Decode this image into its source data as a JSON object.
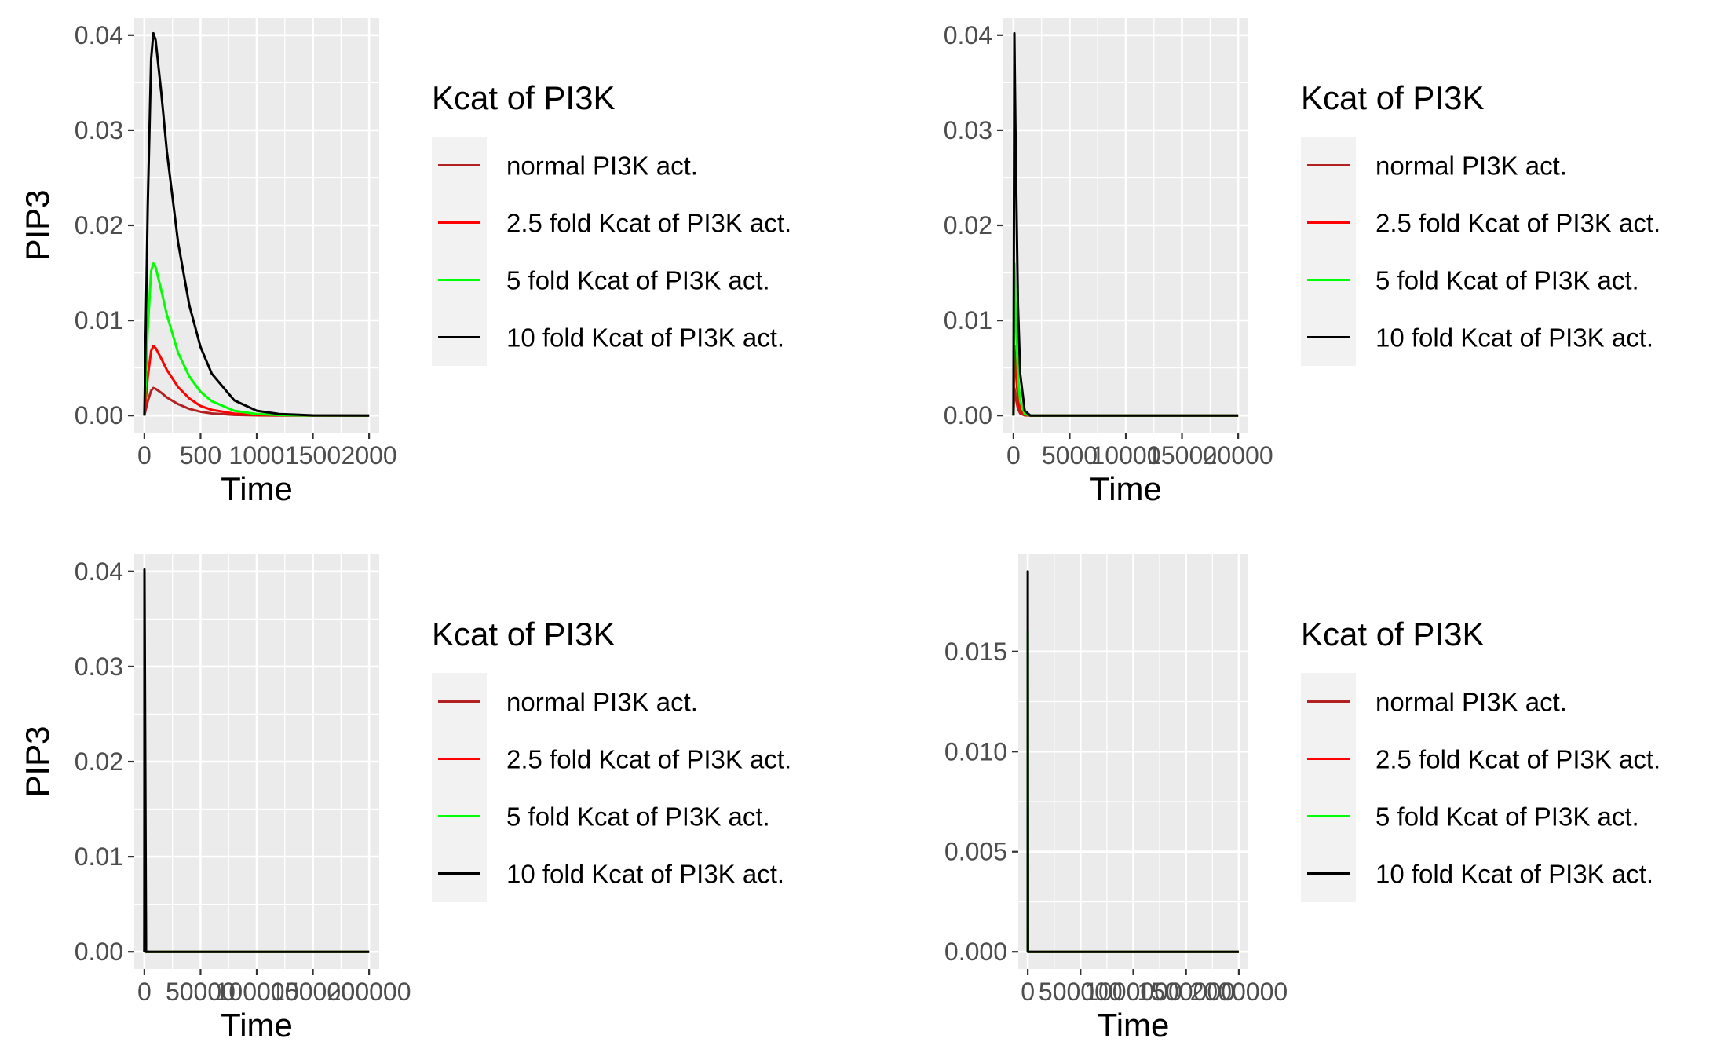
{
  "chart_data": [
    {
      "type": "line",
      "xlabel": "Time",
      "ylabel": "PIP3",
      "xlim": [
        0,
        2000
      ],
      "ylim": [
        0,
        0.04
      ],
      "x_ticks": [
        0,
        500,
        1000,
        1500,
        2000
      ],
      "x_tick_labels": [
        "0",
        "500",
        "1000",
        "1500",
        "2000"
      ],
      "y_ticks": [
        0,
        0.01,
        0.02,
        0.03,
        0.04
      ],
      "y_tick_labels": [
        "0.00",
        "0.01",
        "0.02",
        "0.03",
        "0.04"
      ],
      "grid": true,
      "legend_title": "Kcat of PI3K",
      "legend_position": "right",
      "series": [
        {
          "name": "normal PI3K act.",
          "color": "#b22222",
          "x": [
            0,
            30,
            60,
            80,
            100,
            150,
            200,
            300,
            400,
            500,
            600,
            800,
            1000,
            1200,
            1500,
            2000
          ],
          "y": [
            0,
            0.0015,
            0.0026,
            0.0029,
            0.0028,
            0.0024,
            0.0019,
            0.0012,
            0.0007,
            0.0004,
            0.00022,
            7e-05,
            2e-05,
            0,
            0,
            0
          ]
        },
        {
          "name": "2.5 fold Kcat of PI3K act.",
          "color": "#ff0000",
          "x": [
            0,
            30,
            60,
            80,
            100,
            150,
            200,
            300,
            400,
            500,
            600,
            800,
            1000,
            1200,
            1500,
            2000
          ],
          "y": [
            0,
            0.004,
            0.0068,
            0.0073,
            0.0071,
            0.006,
            0.0048,
            0.003,
            0.0018,
            0.001,
            0.0006,
            0.0002,
            6e-05,
            2e-05,
            0,
            0
          ]
        },
        {
          "name": "5 fold Kcat of PI3K act.",
          "color": "#00ff00",
          "x": [
            0,
            30,
            60,
            80,
            100,
            150,
            200,
            300,
            400,
            500,
            600,
            800,
            1000,
            1200,
            1500,
            2000
          ],
          "y": [
            0,
            0.009,
            0.0152,
            0.016,
            0.0156,
            0.0132,
            0.0106,
            0.0066,
            0.0041,
            0.0025,
            0.0015,
            0.0005,
            0.00016,
            5e-05,
            0,
            0
          ]
        },
        {
          "name": "10 fold Kcat of PI3K act.",
          "color": "#000000",
          "x": [
            0,
            30,
            60,
            80,
            100,
            150,
            200,
            300,
            400,
            500,
            600,
            800,
            1000,
            1200,
            1500,
            2000
          ],
          "y": [
            0,
            0.022,
            0.0375,
            0.0402,
            0.0395,
            0.034,
            0.0278,
            0.0182,
            0.0116,
            0.0072,
            0.0044,
            0.0016,
            0.0005,
            0.00016,
            2e-05,
            0
          ]
        }
      ]
    },
    {
      "type": "line",
      "xlabel": "Time",
      "ylabel": "PIP3",
      "xlim": [
        0,
        20000
      ],
      "ylim": [
        0,
        0.04
      ],
      "x_ticks": [
        0,
        5000,
        10000,
        15000,
        20000
      ],
      "x_tick_labels": [
        "0",
        "5000",
        "10000",
        "15000",
        "20000"
      ],
      "y_ticks": [
        0,
        0.01,
        0.02,
        0.03,
        0.04
      ],
      "y_tick_labels": [
        "0.00",
        "0.01",
        "0.02",
        "0.03",
        "0.04"
      ],
      "grid": true,
      "legend_title": "Kcat of PI3K",
      "legend_position": "right",
      "series": [
        {
          "name": "normal PI3K act.",
          "color": "#b22222",
          "x": [
            0,
            80,
            200,
            400,
            600,
            1000,
            1500,
            20000
          ],
          "y": [
            0,
            0.0029,
            0.0019,
            0.0007,
            0.00022,
            2e-05,
            0,
            0
          ]
        },
        {
          "name": "2.5 fold Kcat of PI3K act.",
          "color": "#ff0000",
          "x": [
            0,
            80,
            200,
            400,
            600,
            1000,
            1500,
            20000
          ],
          "y": [
            0,
            0.0073,
            0.0048,
            0.0018,
            0.0006,
            6e-05,
            0,
            0
          ]
        },
        {
          "name": "5 fold Kcat of PI3K act.",
          "color": "#00ff00",
          "x": [
            0,
            80,
            200,
            400,
            600,
            1000,
            1500,
            20000
          ],
          "y": [
            0,
            0.016,
            0.0106,
            0.0041,
            0.0015,
            0.00016,
            0,
            0
          ]
        },
        {
          "name": "10 fold Kcat of PI3K act.",
          "color": "#000000",
          "x": [
            0,
            80,
            200,
            400,
            600,
            1000,
            1500,
            20000
          ],
          "y": [
            0,
            0.0402,
            0.0278,
            0.0116,
            0.0044,
            0.0005,
            0,
            0
          ]
        }
      ]
    },
    {
      "type": "line",
      "xlabel": "Time",
      "ylabel": "PIP3",
      "xlim": [
        0,
        200000
      ],
      "ylim": [
        0,
        0.04
      ],
      "x_ticks": [
        0,
        50000,
        100000,
        150000,
        200000
      ],
      "x_tick_labels": [
        "0",
        "50000",
        "100000",
        "150000",
        "200000"
      ],
      "y_ticks": [
        0,
        0.01,
        0.02,
        0.03,
        0.04
      ],
      "y_tick_labels": [
        "0.00",
        "0.01",
        "0.02",
        "0.03",
        "0.04"
      ],
      "grid": true,
      "legend_title": "Kcat of PI3K",
      "legend_position": "right",
      "series": [
        {
          "name": "normal PI3K act.",
          "color": "#b22222",
          "x": [
            0,
            80,
            1500,
            200000
          ],
          "y": [
            0,
            0.0029,
            0,
            0
          ]
        },
        {
          "name": "2.5 fold Kcat of PI3K act.",
          "color": "#ff0000",
          "x": [
            0,
            80,
            1500,
            200000
          ],
          "y": [
            0,
            0.0073,
            0,
            0
          ]
        },
        {
          "name": "5 fold Kcat of PI3K act.",
          "color": "#00ff00",
          "x": [
            0,
            80,
            1500,
            200000
          ],
          "y": [
            0,
            0.016,
            0,
            0
          ]
        },
        {
          "name": "10 fold Kcat of PI3K act.",
          "color": "#000000",
          "x": [
            0,
            80,
            1500,
            200000
          ],
          "y": [
            0,
            0.0402,
            0,
            0
          ]
        }
      ]
    },
    {
      "type": "line",
      "xlabel": "Time",
      "ylabel": "PIP3",
      "xlim": [
        0,
        2000000
      ],
      "ylim": [
        0,
        0.019
      ],
      "x_ticks": [
        0,
        500000,
        1000000,
        1500000,
        2000000
      ],
      "x_tick_labels": [
        "0",
        "500000",
        "1000000",
        "1500000",
        "2000000"
      ],
      "y_ticks": [
        0,
        0.005,
        0.01,
        0.015
      ],
      "y_tick_labels": [
        "0.000",
        "0.005",
        "0.010",
        "0.015"
      ],
      "grid": true,
      "legend_title": "Kcat of PI3K",
      "legend_position": "right",
      "series": [
        {
          "name": "normal PI3K act.",
          "color": "#b22222",
          "x": [
            0,
            100,
            2000,
            2000000
          ],
          "y": [
            0,
            0.0029,
            0,
            0
          ]
        },
        {
          "name": "2.5 fold Kcat of PI3K act.",
          "color": "#ff0000",
          "x": [
            0,
            100,
            2000,
            2000000
          ],
          "y": [
            0,
            0.0073,
            0,
            0
          ]
        },
        {
          "name": "5 fold Kcat of PI3K act.",
          "color": "#00ff00",
          "x": [
            0,
            100,
            2000,
            2000000
          ],
          "y": [
            0,
            0.016,
            0,
            0
          ]
        },
        {
          "name": "10 fold Kcat of PI3K act.",
          "color": "#000000",
          "x": [
            0,
            100,
            2000,
            2000000
          ],
          "y": [
            0,
            0.019,
            0,
            0
          ]
        }
      ]
    }
  ]
}
